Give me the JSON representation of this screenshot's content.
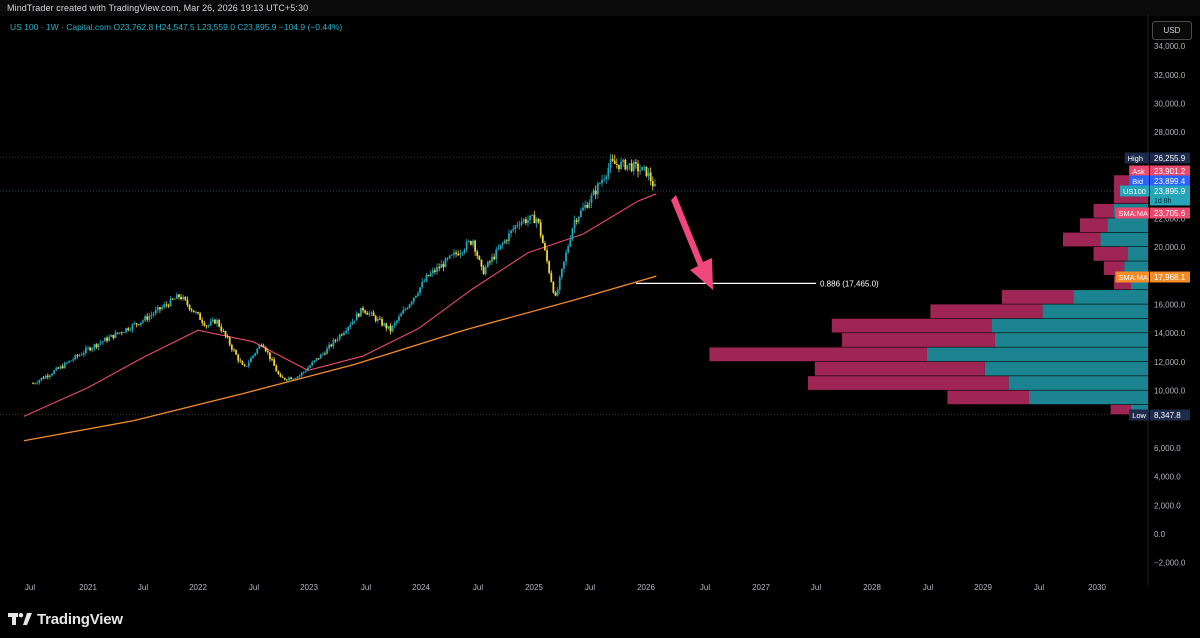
{
  "header": {
    "credit": "MindTrader created with TradingView.com, Mar 26, 2026 19:13 UTC+5:30"
  },
  "legend": {
    "symbol": "US 100 · 1W · Capital.com",
    "ohlc": "O23,762.8 H24,547.5 L23,559.0 C23,895.9 −104.9 (−0.44%)"
  },
  "currency_button": "USD",
  "colors": {
    "background": "#000000",
    "candle_up": "#26a4b8",
    "candle_down": "#f0d438",
    "sma_fast": "#e84a6f",
    "sma_slow": "#f28c28",
    "volume_profile_up": "#1e8a98",
    "volume_profile_down": "#a8275a",
    "arrow": "#f0477e"
  },
  "price_axis": {
    "ticks": [
      "34,000.0",
      "32,000.0",
      "30,000.0",
      "28,000.0",
      "22,000.0",
      "20,000.0",
      "16,000.0",
      "14,000.0",
      "12,000.0",
      "10,000.0",
      "6,000.0",
      "4,000.0",
      "2,000.0",
      "0.0",
      "−2,000.0"
    ],
    "markers": [
      {
        "label": "High",
        "value": "26,255.9",
        "label_color": "#1e2a4a",
        "value_color": "#1e2a4a"
      },
      {
        "label": "Ask",
        "value": "23,901.2",
        "label_color": "#e84a6f",
        "value_color": "#e84a6f"
      },
      {
        "label": "Bid",
        "value": "23,899.4",
        "label_color": "#2962ff",
        "value_color": "#2962ff"
      },
      {
        "label": "US100",
        "value": "23,895.9",
        "label_color": "#26a4b8",
        "value_color": "#26a4b8",
        "extra": "1d 8h"
      },
      {
        "label": "SMA:MA",
        "value": "23,705.6",
        "label_color": "#e84a6f",
        "value_color": "#e84a6f"
      },
      {
        "label": "SMA:MA",
        "value": "17,968.1",
        "label_color": "#f28c28",
        "value_color": "#f28c28"
      },
      {
        "label": "Low",
        "value": "8,347.8",
        "label_color": "#1e2a4a",
        "value_color": "#1e2a4a"
      }
    ]
  },
  "time_axis": {
    "ticks": [
      "Jul",
      "2021",
      "Jul",
      "2022",
      "Jul",
      "2023",
      "Jul",
      "2024",
      "Jul",
      "2025",
      "Jul",
      "2026",
      "Jul",
      "2027",
      "Jul",
      "2028",
      "Jul",
      "2029",
      "Jul",
      "2030"
    ]
  },
  "annotation": {
    "fib_label": "0.886 (17,465.0)"
  },
  "chart_data": {
    "type": "candlestick",
    "symbol": "US 100",
    "timeframe": "1W",
    "x_range": [
      "2020-06",
      "2030-03"
    ],
    "ylim": [
      -2500,
      35500
    ],
    "series": [
      {
        "name": "US100",
        "close_path": [
          {
            "x": "2020-07",
            "y": 10500
          },
          {
            "x": "2020-10",
            "y": 11600
          },
          {
            "x": "2021-01",
            "y": 12900
          },
          {
            "x": "2021-04",
            "y": 13900
          },
          {
            "x": "2021-07",
            "y": 14900
          },
          {
            "x": "2021-11",
            "y": 16600
          },
          {
            "x": "2022-02",
            "y": 14500
          },
          {
            "x": "2022-03",
            "y": 14900
          },
          {
            "x": "2022-06",
            "y": 11500
          },
          {
            "x": "2022-08",
            "y": 13400
          },
          {
            "x": "2022-10",
            "y": 10800
          },
          {
            "x": "2022-12",
            "y": 11000
          },
          {
            "x": "2023-03",
            "y": 12800
          },
          {
            "x": "2023-07",
            "y": 15700
          },
          {
            "x": "2023-10",
            "y": 14200
          },
          {
            "x": "2024-02",
            "y": 17900
          },
          {
            "x": "2024-07",
            "y": 20500
          },
          {
            "x": "2024-08",
            "y": 18200
          },
          {
            "x": "2024-12",
            "y": 21800
          },
          {
            "x": "2025-02",
            "y": 22000
          },
          {
            "x": "2025-04",
            "y": 16400
          },
          {
            "x": "2025-06",
            "y": 21800
          },
          {
            "x": "2025-08",
            "y": 23500
          },
          {
            "x": "2025-10",
            "y": 25800
          },
          {
            "x": "2025-12",
            "y": 25700
          },
          {
            "x": "2026-02",
            "y": 25200
          },
          {
            "x": "2026-03",
            "y": 23896
          }
        ]
      },
      {
        "name": "SMA:MA",
        "last": 23705.6,
        "points": [
          {
            "x": "2020-06",
            "y": 8200
          },
          {
            "x": "2021-01",
            "y": 10200
          },
          {
            "x": "2021-07",
            "y": 12300
          },
          {
            "x": "2022-01",
            "y": 14200
          },
          {
            "x": "2022-07",
            "y": 13400
          },
          {
            "x": "2023-01",
            "y": 11400
          },
          {
            "x": "2023-07",
            "y": 12400
          },
          {
            "x": "2024-01",
            "y": 14300
          },
          {
            "x": "2024-07",
            "y": 17100
          },
          {
            "x": "2025-01",
            "y": 19600
          },
          {
            "x": "2025-07",
            "y": 20900
          },
          {
            "x": "2026-01",
            "y": 23200
          },
          {
            "x": "2026-03",
            "y": 23706
          }
        ]
      },
      {
        "name": "SMA:MA",
        "last": 17968.1,
        "points": [
          {
            "x": "2020-06",
            "y": 6500
          },
          {
            "x": "2021-06",
            "y": 7900
          },
          {
            "x": "2022-06",
            "y": 9800
          },
          {
            "x": "2023-06",
            "y": 11800
          },
          {
            "x": "2024-06",
            "y": 14200
          },
          {
            "x": "2025-06",
            "y": 16300
          },
          {
            "x": "2026-03",
            "y": 17968
          }
        ]
      }
    ],
    "high": 26255.9,
    "low": 8347.8,
    "fib_level": {
      "ratio": 0.886,
      "price": 17465.0
    },
    "volume_profile": [
      {
        "price_low": 23000,
        "price_high": 25000,
        "up": 0.0,
        "down": 0.1
      },
      {
        "price_low": 22000,
        "price_high": 23000,
        "up": 0.1,
        "down": 0.06
      },
      {
        "price_low": 21000,
        "price_high": 22000,
        "up": 0.12,
        "down": 0.08
      },
      {
        "price_low": 20000,
        "price_high": 21000,
        "up": 0.14,
        "down": 0.11
      },
      {
        "price_low": 19000,
        "price_high": 20000,
        "up": 0.06,
        "down": 0.1
      },
      {
        "price_low": 18000,
        "price_high": 19000,
        "up": 0.07,
        "down": 0.06
      },
      {
        "price_low": 17000,
        "price_high": 18000,
        "up": 0.05,
        "down": 0.05
      },
      {
        "price_low": 16000,
        "price_high": 17000,
        "up": 0.22,
        "down": 0.21
      },
      {
        "price_low": 15000,
        "price_high": 16000,
        "up": 0.31,
        "down": 0.33
      },
      {
        "price_low": 14000,
        "price_high": 15000,
        "up": 0.46,
        "down": 0.47
      },
      {
        "price_low": 13000,
        "price_high": 14000,
        "up": 0.45,
        "down": 0.45
      },
      {
        "price_low": 12000,
        "price_high": 13000,
        "up": 0.65,
        "down": 0.64
      },
      {
        "price_low": 11000,
        "price_high": 12000,
        "up": 0.48,
        "down": 0.5
      },
      {
        "price_low": 10000,
        "price_high": 11000,
        "up": 0.41,
        "down": 0.59
      },
      {
        "price_low": 9000,
        "price_high": 10000,
        "up": 0.35,
        "down": 0.24
      },
      {
        "price_low": 8300,
        "price_high": 9000,
        "up": 0.05,
        "down": 0.06
      }
    ],
    "annotations": [
      {
        "type": "horizontal_line",
        "price": 17465.0,
        "from": "2026-01",
        "to": "2027-06",
        "label": "0.886 (17,465.0)"
      },
      {
        "type": "arrow",
        "direction": "down",
        "from_x": "2026-04",
        "from_y": 23700,
        "to_x": "2026-07",
        "to_y": 18000
      }
    ]
  }
}
